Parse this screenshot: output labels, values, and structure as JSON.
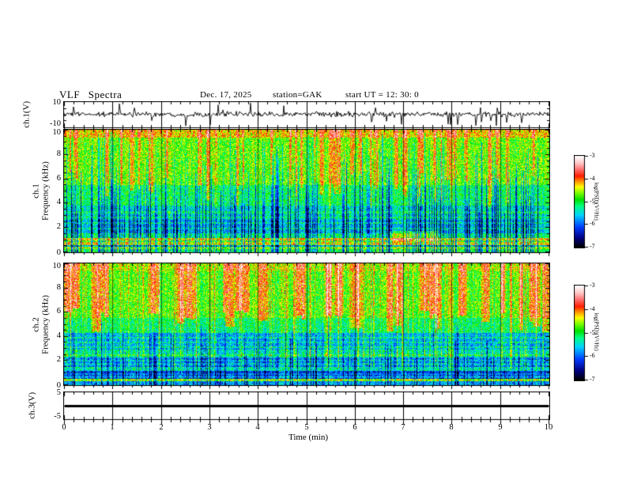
{
  "figure": {
    "title": "VLF Spectra",
    "date": "Dec. 17, 2025",
    "station": "station=GAK",
    "start_ut": "start UT =  12: 30: 0",
    "background": "#ffffff",
    "frame_color": "#000000"
  },
  "x_axis": {
    "label": "Time (min)",
    "range": [
      0,
      10
    ],
    "major_ticks": [
      0,
      1,
      2,
      3,
      4,
      5,
      6,
      7,
      8,
      9,
      10
    ],
    "minor_step": 0.2,
    "minute_gridlines": [
      1,
      2,
      3,
      4,
      5,
      6,
      7,
      8,
      9
    ]
  },
  "colorbar": {
    "label": "log(PSD)(V²/Hz)",
    "ticks": [
      -3,
      -4,
      -5,
      -6,
      -7
    ],
    "range": [
      -7,
      -3
    ],
    "colormap_stops": [
      [
        0.0,
        0,
        0,
        0
      ],
      [
        0.1,
        0,
        0,
        130
      ],
      [
        0.22,
        0,
        60,
        255
      ],
      [
        0.35,
        0,
        210,
        255
      ],
      [
        0.45,
        0,
        255,
        130
      ],
      [
        0.52,
        0,
        225,
        0
      ],
      [
        0.6,
        130,
        255,
        0
      ],
      [
        0.66,
        255,
        255,
        0
      ],
      [
        0.72,
        255,
        150,
        0
      ],
      [
        0.78,
        255,
        30,
        0
      ],
      [
        0.86,
        255,
        120,
        120
      ],
      [
        0.93,
        255,
        205,
        205
      ],
      [
        1.0,
        255,
        255,
        255
      ]
    ]
  },
  "chart_data": [
    {
      "type": "line",
      "panel": "ch1_waveform",
      "ylabel": "ch.1(V)",
      "ylabel_lines": [
        "ch.1(V)"
      ],
      "ylim": [
        -10,
        10
      ],
      "yticks": [
        10,
        -10
      ],
      "x_range_min": [
        0,
        10
      ],
      "signal": {
        "mean": 0,
        "noise_std": 1.0,
        "spike_count": 26,
        "spike_amp_range": [
          3.5,
          9.5
        ],
        "negative_spike_fraction": 0.65,
        "seed": 1234
      }
    },
    {
      "type": "heatmap",
      "panel": "ch1_spectrogram",
      "ylabel": "ch.1 Frequency (kHz)",
      "ylabel_lines": [
        "ch.1",
        "Frequency (kHz)"
      ],
      "ylim": [
        0,
        10
      ],
      "yticks": [
        0,
        2,
        4,
        6,
        8,
        10
      ],
      "y_minor_step": 0.5,
      "x_range_min": [
        0,
        10
      ],
      "zlabel": "log(PSD)(V²/Hz)",
      "zlim": [
        -7,
        -3
      ],
      "seed": 7,
      "noise": 0.12,
      "bands": [
        [
          9.4,
          10.2,
          0.68
        ],
        [
          5.5,
          9.4,
          0.57
        ],
        [
          3.8,
          5.5,
          0.48
        ],
        [
          2.6,
          3.8,
          0.4
        ],
        [
          1.5,
          2.6,
          0.34
        ],
        [
          1.15,
          1.5,
          0.46
        ],
        [
          0.92,
          1.15,
          0.72
        ],
        [
          0.78,
          0.92,
          0.56
        ],
        [
          0.58,
          0.78,
          0.68
        ],
        [
          0.42,
          0.58,
          0.36
        ],
        [
          0.22,
          0.42,
          0.6
        ],
        [
          -0.1,
          0.22,
          0.5
        ]
      ],
      "h_lines": [
        [
          1.9,
          0.1
        ],
        [
          2.35,
          0.1
        ],
        [
          2.8,
          0.08
        ],
        [
          3.25,
          0.08
        ]
      ],
      "blue_streaks": {
        "prob": 0.34,
        "strength": [
          0.18,
          0.42
        ],
        "top_range": [
          3,
          10
        ]
      },
      "red_patches": {
        "count": 55,
        "width": [
          1,
          3
        ],
        "fmin_range": [
          3.5,
          6.5
        ],
        "amp": 0.2
      },
      "blob": {
        "t": [
          6.7,
          7.7
        ],
        "f": [
          0.8,
          1.7
        ],
        "amp": 0.16
      }
    },
    {
      "type": "heatmap",
      "panel": "ch2_spectrogram",
      "ylabel": "ch.2 Frequency (kHz)",
      "ylabel_lines": [
        "ch.2",
        "Frequency (kHz)"
      ],
      "ylim": [
        0,
        10
      ],
      "yticks": [
        0,
        2,
        4,
        6,
        8,
        10
      ],
      "y_minor_step": 0.5,
      "x_range_min": [
        0,
        10
      ],
      "zlabel": "log(PSD)(V²/Hz)",
      "zlim": [
        -7,
        -3
      ],
      "seed": 99,
      "noise": 0.12,
      "bands": [
        [
          9.4,
          10.2,
          0.6
        ],
        [
          5.5,
          9.4,
          0.55
        ],
        [
          4.3,
          5.5,
          0.47
        ],
        [
          2.9,
          4.3,
          0.33
        ],
        [
          2.25,
          2.9,
          0.42
        ],
        [
          1.45,
          2.25,
          0.28
        ],
        [
          1.15,
          1.45,
          0.42
        ],
        [
          0.5,
          1.15,
          0.22
        ],
        [
          0.28,
          0.5,
          0.62
        ],
        [
          -0.1,
          0.28,
          0.32
        ]
      ],
      "h_lines": [
        [
          1.7,
          0.08
        ],
        [
          2.0,
          0.08
        ],
        [
          2.45,
          0.1
        ],
        [
          3.1,
          0.1
        ],
        [
          3.5,
          0.08
        ],
        [
          3.9,
          0.08
        ],
        [
          0.65,
          0.1
        ],
        [
          0.9,
          0.08
        ]
      ],
      "blue_streaks": {
        "prob": 0.25,
        "strength": [
          0.12,
          0.3
        ],
        "top_range": [
          2,
          5.5
        ]
      },
      "green_streaks": {
        "prob": 0.16,
        "amp": 0.14
      },
      "red_patches": {
        "count": 36,
        "width": [
          2,
          9
        ],
        "fmin_range": [
          4.3,
          6.3
        ],
        "amp": 0.26
      }
    },
    {
      "type": "line",
      "panel": "ch3_waveform",
      "ylabel": "ch.3(V)",
      "ylabel_lines": [
        "ch.3(V)"
      ],
      "ylim": [
        -5,
        5
      ],
      "yticks": [
        5,
        -5
      ],
      "x_range_min": [
        0,
        10
      ],
      "signal": {
        "constant": 0,
        "line_thickness_v": 0.8
      }
    }
  ]
}
